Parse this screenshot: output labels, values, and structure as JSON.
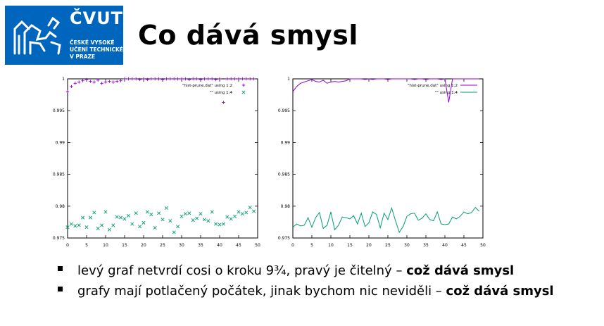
{
  "logo": {
    "abbr": "ČVUT",
    "university": "ČESKÉ VYSOKÉ\nUČENÍ TECHNICKÉ\nV PRAZE"
  },
  "title": "Co dává smysl",
  "colors": {
    "brand": "#0065bd",
    "series1": "#9400d3",
    "series2": "#009e73"
  },
  "chart_data": [
    {
      "type": "scatter",
      "ylim": [
        0.975,
        1.0
      ],
      "xlim": [
        0,
        50
      ],
      "xticks": [
        "0",
        "5",
        "10",
        "15",
        "20",
        "25",
        "30",
        "35",
        "40",
        "45",
        "50"
      ],
      "yticks": [
        "0.975",
        "0.98",
        "0.985",
        "0.99",
        "0.995",
        "1"
      ],
      "legend": [
        "\"hist-prune.dat\" using 1:2",
        "\"\" using 1:4"
      ],
      "series": [
        {
          "name": "\"hist-prune.dat\" using 1:2",
          "marker": "+",
          "x": [
            0,
            1,
            2,
            3,
            4,
            5,
            6,
            7,
            8,
            9,
            10,
            11,
            12,
            13,
            14,
            15,
            16,
            17,
            18,
            19,
            20,
            21,
            22,
            23,
            24,
            25,
            26,
            27,
            28,
            29,
            30,
            31,
            32,
            33,
            34,
            35,
            36,
            37,
            38,
            39,
            40,
            41,
            42,
            43,
            44,
            45,
            46,
            47,
            48,
            49
          ],
          "y": [
            0.998,
            0.9988,
            0.9993,
            0.9995,
            0.9997,
            0.9999,
            0.9996,
            0.9995,
            0.9998,
            0.9993,
            0.9995,
            0.9996,
            0.9995,
            0.9996,
            0.9997,
            1.0,
            1.0,
            1.0,
            1.0,
            0.9999,
            1.0,
            0.9999,
            1.0,
            1.0,
            1.0,
            0.9999,
            1.0,
            1.0,
            1.0,
            1.0,
            1.0,
            1.0,
            0.9999,
            1.0,
            1.0,
            0.9999,
            1.0,
            1.0,
            1.0,
            0.9999,
            1.0,
            0.9963,
            1.0,
            1.0,
            1.0,
            1.0,
            1.0,
            1.0,
            1.0,
            1.0
          ]
        },
        {
          "name": "\"\" using 1:4",
          "marker": "x",
          "x": [
            0,
            1,
            2,
            3,
            4,
            5,
            6,
            7,
            8,
            9,
            10,
            11,
            12,
            13,
            14,
            15,
            16,
            17,
            18,
            19,
            20,
            21,
            22,
            23,
            24,
            25,
            26,
            27,
            28,
            29,
            30,
            31,
            32,
            33,
            34,
            35,
            36,
            37,
            38,
            39,
            40,
            41,
            42,
            43,
            44,
            45,
            46,
            47,
            48,
            49
          ],
          "y": [
            0.9767,
            0.9772,
            0.9769,
            0.977,
            0.9782,
            0.9767,
            0.9782,
            0.979,
            0.9765,
            0.977,
            0.9791,
            0.9763,
            0.977,
            0.9783,
            0.9782,
            0.978,
            0.9785,
            0.9772,
            0.9789,
            0.9768,
            0.9774,
            0.9791,
            0.9787,
            0.9766,
            0.9789,
            0.9779,
            0.9797,
            0.9777,
            0.9759,
            0.9768,
            0.9784,
            0.9788,
            0.9789,
            0.9778,
            0.9781,
            0.9788,
            0.9779,
            0.9777,
            0.9791,
            0.9772,
            0.9771,
            0.9772,
            0.9783,
            0.978,
            0.9784,
            0.9791,
            0.9788,
            0.979,
            0.9798,
            0.9792
          ]
        }
      ]
    },
    {
      "type": "line",
      "ylim": [
        0.975,
        1.0
      ],
      "xlim": [
        0,
        50
      ],
      "xticks": [
        "0",
        "5",
        "10",
        "15",
        "20",
        "25",
        "30",
        "35",
        "40",
        "45",
        "50"
      ],
      "yticks": [
        "0.975",
        "0.98",
        "0.985",
        "0.99",
        "0.995",
        "1"
      ],
      "legend": [
        "\"hist-prune.dat\" using 1:2",
        "\"\" using 1:4"
      ],
      "series": [
        {
          "name": "\"hist-prune.dat\" using 1:2",
          "x": [
            0,
            1,
            2,
            3,
            4,
            5,
            6,
            7,
            8,
            9,
            10,
            11,
            12,
            13,
            14,
            15,
            16,
            17,
            18,
            19,
            20,
            21,
            22,
            23,
            24,
            25,
            26,
            27,
            28,
            29,
            30,
            31,
            32,
            33,
            34,
            35,
            36,
            37,
            38,
            39,
            40,
            41,
            42,
            43,
            44,
            45,
            46,
            47,
            48,
            49
          ],
          "y": [
            0.998,
            0.9988,
            0.9993,
            0.9995,
            0.9997,
            0.9999,
            0.9996,
            0.9995,
            0.9998,
            0.9993,
            0.9995,
            0.9996,
            0.9995,
            0.9996,
            0.9997,
            1.0,
            1.0,
            1.0,
            1.0,
            0.9999,
            1.0,
            0.9999,
            1.0,
            1.0,
            1.0,
            0.9999,
            1.0,
            1.0,
            1.0,
            1.0,
            1.0,
            1.0,
            0.9999,
            1.0,
            1.0,
            0.9999,
            1.0,
            1.0,
            1.0,
            0.9999,
            1.0,
            0.9963,
            1.0,
            1.0,
            1.0,
            1.0,
            1.0,
            1.0,
            1.0,
            1.0
          ]
        },
        {
          "name": "\"\" using 1:4",
          "x": [
            0,
            1,
            2,
            3,
            4,
            5,
            6,
            7,
            8,
            9,
            10,
            11,
            12,
            13,
            14,
            15,
            16,
            17,
            18,
            19,
            20,
            21,
            22,
            23,
            24,
            25,
            26,
            27,
            28,
            29,
            30,
            31,
            32,
            33,
            34,
            35,
            36,
            37,
            38,
            39,
            40,
            41,
            42,
            43,
            44,
            45,
            46,
            47,
            48,
            49
          ],
          "y": [
            0.9767,
            0.9772,
            0.9769,
            0.977,
            0.9782,
            0.9767,
            0.9782,
            0.979,
            0.9765,
            0.977,
            0.9791,
            0.9763,
            0.977,
            0.9783,
            0.9782,
            0.978,
            0.9785,
            0.9772,
            0.9789,
            0.9768,
            0.9774,
            0.9791,
            0.9787,
            0.9766,
            0.9789,
            0.9779,
            0.9797,
            0.9777,
            0.9759,
            0.9768,
            0.9784,
            0.9788,
            0.9789,
            0.9778,
            0.9781,
            0.9788,
            0.9779,
            0.9777,
            0.9791,
            0.9772,
            0.9771,
            0.9772,
            0.9783,
            0.978,
            0.9784,
            0.9791,
            0.9788,
            0.979,
            0.9798,
            0.9792
          ]
        }
      ]
    }
  ],
  "bullets": [
    {
      "text": "levý graf netvrdí cosi o kroku 9¾, pravý je čitelný – ",
      "bold": "což dává smysl"
    },
    {
      "text": "grafy mají potlačený počátek, jinak bychom nic neviděli – ",
      "bold": "což dává smysl"
    }
  ]
}
